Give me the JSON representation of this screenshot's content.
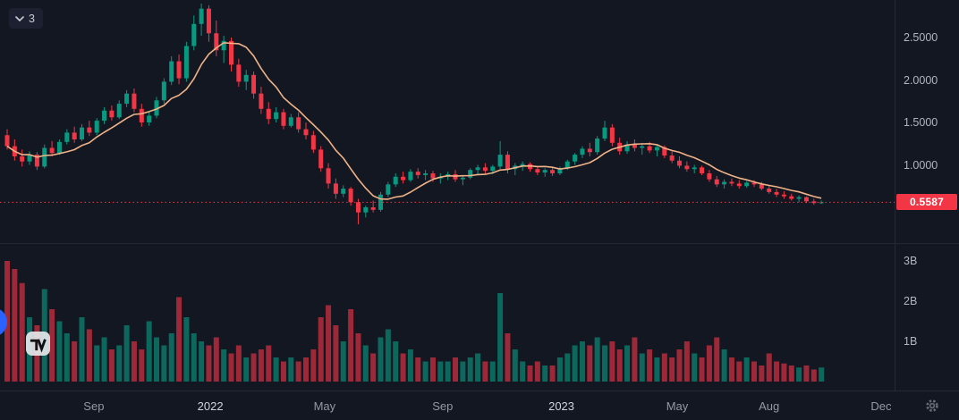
{
  "toolbar": {
    "badge": "3"
  },
  "price_axis": {
    "ticks": [
      {
        "label": "2.5000",
        "value": 2.5
      },
      {
        "label": "2.0000",
        "value": 2.0
      },
      {
        "label": "1.5000",
        "value": 1.5
      },
      {
        "label": "1.0000",
        "value": 1.0
      }
    ]
  },
  "volume_axis": {
    "ticks": [
      {
        "label": "3B",
        "value": 3
      },
      {
        "label": "2B",
        "value": 2
      },
      {
        "label": "1B",
        "value": 1
      }
    ]
  },
  "time_axis": {
    "ticks": [
      {
        "label": "Sep",
        "index": 11.6,
        "major": false
      },
      {
        "label": "2022",
        "index": 27.2,
        "major": true
      },
      {
        "label": "May",
        "index": 42.5,
        "major": false
      },
      {
        "label": "Sep",
        "index": 58.3,
        "major": false
      },
      {
        "label": "2023",
        "index": 74.2,
        "major": true
      },
      {
        "label": "May",
        "index": 89.7,
        "major": false
      },
      {
        "label": "Aug",
        "index": 102,
        "major": false
      },
      {
        "label": "Dec",
        "index": 117,
        "major": false
      }
    ]
  },
  "chart_data": {
    "type": "candlestick",
    "interval": "weekly",
    "title": "",
    "last_price": 0.5587,
    "last_price_label": "0.5587",
    "price_ylim": [
      0.08,
      2.94
    ],
    "volume_ylim_billions": [
      0,
      3.3
    ],
    "legend": [
      "price candles",
      "moving average",
      "volume"
    ],
    "colors": {
      "up": "#089981",
      "down": "#f23645",
      "ma": "#f0b287",
      "chip_bg": "#f23645",
      "bg": "#131722",
      "axis_text": "#b2b5be",
      "divider": "#2a2e39",
      "dotted_line": "#f23645"
    },
    "candles_format": [
      "open",
      "high",
      "low",
      "close",
      "volume_billions"
    ],
    "candles": [
      [
        1.35,
        1.42,
        1.18,
        1.22,
        3.0
      ],
      [
        1.22,
        1.3,
        1.05,
        1.1,
        2.8
      ],
      [
        1.1,
        1.18,
        0.98,
        1.04,
        2.45
      ],
      [
        1.04,
        1.16,
        1.0,
        1.12,
        1.6
      ],
      [
        1.12,
        1.15,
        0.94,
        0.98,
        1.4
      ],
      [
        0.98,
        1.24,
        0.96,
        1.2,
        2.3
      ],
      [
        1.2,
        1.28,
        1.1,
        1.14,
        1.8
      ],
      [
        1.14,
        1.3,
        1.12,
        1.27,
        1.5
      ],
      [
        1.27,
        1.42,
        1.24,
        1.38,
        1.2
      ],
      [
        1.38,
        1.45,
        1.26,
        1.3,
        1.0
      ],
      [
        1.3,
        1.48,
        1.28,
        1.44,
        1.6
      ],
      [
        1.44,
        1.52,
        1.34,
        1.38,
        1.3
      ],
      [
        1.38,
        1.55,
        1.35,
        1.52,
        0.9
      ],
      [
        1.52,
        1.68,
        1.48,
        1.64,
        1.1
      ],
      [
        1.64,
        1.7,
        1.52,
        1.56,
        0.8
      ],
      [
        1.56,
        1.76,
        1.54,
        1.72,
        0.9
      ],
      [
        1.72,
        1.88,
        1.68,
        1.84,
        1.4
      ],
      [
        1.84,
        1.9,
        1.62,
        1.66,
        1.0
      ],
      [
        1.66,
        1.72,
        1.45,
        1.5,
        0.8
      ],
      [
        1.5,
        1.62,
        1.46,
        1.58,
        1.5
      ],
      [
        1.58,
        1.8,
        1.55,
        1.76,
        1.1
      ],
      [
        1.76,
        2.02,
        1.72,
        1.98,
        0.9
      ],
      [
        1.98,
        2.28,
        1.94,
        2.22,
        1.2
      ],
      [
        2.22,
        2.3,
        1.95,
        2.02,
        2.1
      ],
      [
        2.02,
        2.45,
        1.98,
        2.4,
        1.6
      ],
      [
        2.4,
        2.76,
        2.35,
        2.66,
        1.2
      ],
      [
        2.66,
        2.9,
        2.52,
        2.84,
        1.0
      ],
      [
        2.84,
        2.88,
        2.45,
        2.55,
        0.9
      ],
      [
        2.55,
        2.7,
        2.28,
        2.35,
        1.1
      ],
      [
        2.35,
        2.52,
        2.2,
        2.46,
        0.8
      ],
      [
        2.46,
        2.5,
        2.1,
        2.18,
        0.7
      ],
      [
        2.18,
        2.25,
        1.92,
        1.98,
        0.9
      ],
      [
        1.98,
        2.12,
        1.88,
        2.06,
        0.6
      ],
      [
        2.06,
        2.1,
        1.78,
        1.84,
        0.7
      ],
      [
        1.84,
        1.92,
        1.6,
        1.66,
        0.8
      ],
      [
        1.66,
        1.74,
        1.48,
        1.54,
        0.9
      ],
      [
        1.54,
        1.68,
        1.5,
        1.62,
        0.6
      ],
      [
        1.62,
        1.66,
        1.42,
        1.46,
        0.5
      ],
      [
        1.46,
        1.6,
        1.44,
        1.56,
        0.6
      ],
      [
        1.56,
        1.62,
        1.38,
        1.42,
        0.5
      ],
      [
        1.42,
        1.5,
        1.3,
        1.35,
        0.6
      ],
      [
        1.35,
        1.4,
        1.14,
        1.18,
        0.8
      ],
      [
        1.18,
        1.22,
        0.92,
        0.96,
        1.6
      ],
      [
        0.96,
        1.02,
        0.72,
        0.78,
        1.9
      ],
      [
        0.78,
        0.84,
        0.6,
        0.66,
        1.4
      ],
      [
        0.66,
        0.76,
        0.62,
        0.72,
        1.0
      ],
      [
        0.72,
        0.74,
        0.52,
        0.56,
        1.8
      ],
      [
        0.56,
        0.6,
        0.3,
        0.44,
        1.2
      ],
      [
        0.44,
        0.52,
        0.38,
        0.5,
        0.9
      ],
      [
        0.5,
        0.58,
        0.44,
        0.47,
        0.7
      ],
      [
        0.47,
        0.68,
        0.45,
        0.65,
        1.1
      ],
      [
        0.65,
        0.8,
        0.62,
        0.77,
        1.3
      ],
      [
        0.77,
        0.9,
        0.74,
        0.86,
        1.0
      ],
      [
        0.86,
        0.92,
        0.78,
        0.82,
        0.7
      ],
      [
        0.82,
        0.95,
        0.8,
        0.92,
        0.8
      ],
      [
        0.92,
        0.96,
        0.84,
        0.88,
        0.6
      ],
      [
        0.88,
        0.94,
        0.82,
        0.9,
        0.5
      ],
      [
        0.9,
        0.93,
        0.8,
        0.84,
        0.6
      ],
      [
        0.84,
        0.9,
        0.78,
        0.86,
        0.5
      ],
      [
        0.86,
        0.92,
        0.82,
        0.89,
        0.5
      ],
      [
        0.89,
        0.94,
        0.8,
        0.83,
        0.6
      ],
      [
        0.83,
        0.88,
        0.76,
        0.85,
        0.5
      ],
      [
        0.85,
        0.96,
        0.83,
        0.94,
        0.6
      ],
      [
        0.94,
        1.0,
        0.88,
        0.97,
        0.7
      ],
      [
        0.97,
        1.02,
        0.9,
        0.93,
        0.5
      ],
      [
        0.93,
        1.0,
        0.89,
        0.98,
        0.5
      ],
      [
        0.98,
        1.28,
        0.95,
        1.12,
        2.2
      ],
      [
        1.12,
        1.16,
        0.9,
        0.95,
        1.2
      ],
      [
        0.95,
        1.02,
        0.88,
        0.99,
        0.8
      ],
      [
        0.99,
        1.04,
        0.93,
        1.01,
        0.5
      ],
      [
        1.01,
        1.03,
        0.92,
        0.95,
        0.4
      ],
      [
        0.95,
        0.98,
        0.88,
        0.91,
        0.5
      ],
      [
        0.91,
        0.96,
        0.86,
        0.94,
        0.4
      ],
      [
        0.94,
        0.97,
        0.87,
        0.9,
        0.4
      ],
      [
        0.9,
        0.98,
        0.88,
        0.96,
        0.6
      ],
      [
        0.96,
        1.06,
        0.94,
        1.04,
        0.7
      ],
      [
        1.04,
        1.14,
        1.0,
        1.12,
        0.9
      ],
      [
        1.12,
        1.22,
        1.08,
        1.19,
        1.0
      ],
      [
        1.19,
        1.26,
        1.1,
        1.15,
        0.9
      ],
      [
        1.15,
        1.34,
        1.12,
        1.31,
        1.1
      ],
      [
        1.31,
        1.52,
        1.28,
        1.44,
        0.9
      ],
      [
        1.44,
        1.48,
        1.22,
        1.26,
        1.0
      ],
      [
        1.26,
        1.32,
        1.12,
        1.16,
        0.8
      ],
      [
        1.16,
        1.28,
        1.13,
        1.24,
        0.9
      ],
      [
        1.24,
        1.3,
        1.16,
        1.2,
        1.1
      ],
      [
        1.2,
        1.26,
        1.12,
        1.22,
        0.7
      ],
      [
        1.22,
        1.27,
        1.14,
        1.17,
        0.8
      ],
      [
        1.17,
        1.24,
        1.1,
        1.21,
        0.6
      ],
      [
        1.21,
        1.23,
        1.08,
        1.11,
        0.7
      ],
      [
        1.11,
        1.16,
        1.02,
        1.05,
        0.6
      ],
      [
        1.05,
        1.1,
        0.96,
        0.99,
        0.8
      ],
      [
        0.99,
        1.04,
        0.92,
        0.95,
        1.0
      ],
      [
        0.95,
        1.0,
        0.9,
        0.97,
        0.7
      ],
      [
        0.97,
        0.99,
        0.88,
        0.9,
        0.6
      ],
      [
        0.9,
        0.94,
        0.8,
        0.83,
        0.9
      ],
      [
        0.83,
        0.87,
        0.74,
        0.77,
        1.1
      ],
      [
        0.77,
        0.83,
        0.72,
        0.8,
        0.8
      ],
      [
        0.8,
        0.84,
        0.75,
        0.78,
        0.6
      ],
      [
        0.78,
        0.82,
        0.72,
        0.75,
        0.5
      ],
      [
        0.75,
        0.81,
        0.73,
        0.79,
        0.6
      ],
      [
        0.79,
        0.82,
        0.74,
        0.77,
        0.5
      ],
      [
        0.77,
        0.8,
        0.7,
        0.72,
        0.4
      ],
      [
        0.72,
        0.76,
        0.66,
        0.68,
        0.7
      ],
      [
        0.68,
        0.72,
        0.62,
        0.65,
        0.5
      ],
      [
        0.65,
        0.69,
        0.6,
        0.63,
        0.45
      ],
      [
        0.63,
        0.66,
        0.58,
        0.6,
        0.4
      ],
      [
        0.6,
        0.64,
        0.56,
        0.62,
        0.35
      ],
      [
        0.62,
        0.63,
        0.55,
        0.57,
        0.4
      ],
      [
        0.57,
        0.6,
        0.53,
        0.55,
        0.3
      ],
      [
        0.55,
        0.58,
        0.54,
        0.5587,
        0.35
      ]
    ]
  }
}
